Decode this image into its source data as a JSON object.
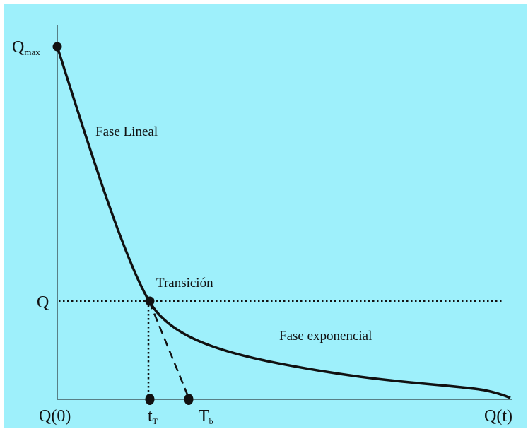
{
  "diagram": {
    "background_color": "#9ef0fb",
    "line_color": "#111111",
    "labels": {
      "qmax_main": "Q",
      "qmax_sub": "max",
      "q": "Q",
      "q0": "Q(0)",
      "qt": "Q(t)",
      "tT_main": "t",
      "tT_sub": "T",
      "Tb_main": "T",
      "Tb_sub": "b",
      "fase_lineal": "Fase Lineal",
      "transicion": "Transición",
      "fase_exponencial": "Fase exponencial"
    }
  }
}
